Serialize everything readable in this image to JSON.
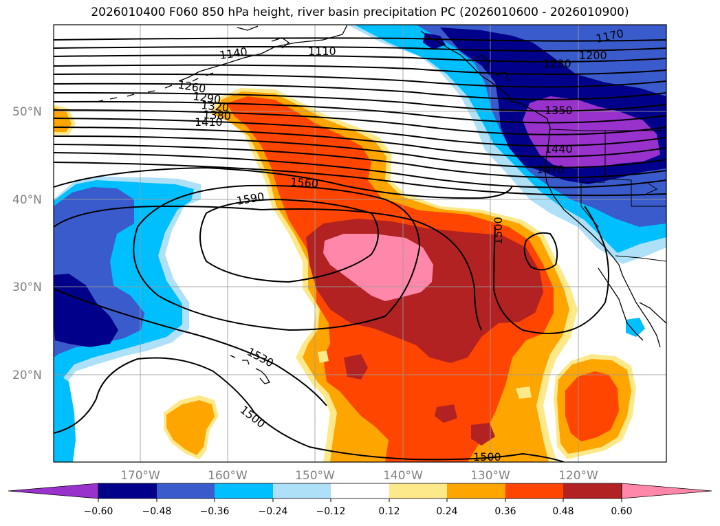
{
  "title": "2026010400 F060 850 hPa height, river basin precipitation PC (2026010600 - 2026010900)",
  "colors": {
    "neg_060": "#9932cc",
    "neg_048": "#00008b",
    "neg_036": "#3a5bcc",
    "neg_024": "#00bfff",
    "neg_012": "#aee0f8",
    "zero": "#ffffff",
    "pos_012": "#fde98a",
    "pos_024": "#ffa500",
    "pos_036": "#ff4500",
    "pos_048": "#b22222",
    "pos_060": "#ff88aa"
  },
  "lat_labels": [
    "50°N",
    "40°N",
    "30°N",
    "20°N"
  ],
  "lon_labels": [
    "170°W",
    "160°W",
    "150°W",
    "140°W",
    "130°W",
    "120°W"
  ],
  "contour_labels": [
    "1110",
    "1140",
    "1170",
    "1200",
    "1230",
    "1260",
    "1290",
    "1320",
    "1350",
    "1380",
    "1410",
    "1440",
    "1470",
    "1560",
    "1590",
    "1500",
    "1530",
    "1500",
    "1500"
  ],
  "colorbar": {
    "ticks": [
      "−0.60",
      "−0.48",
      "−0.36",
      "−0.24",
      "−0.12",
      "0.12",
      "0.24",
      "0.36",
      "0.48",
      "0.60"
    ]
  },
  "chart_data": {
    "type": "heatmap",
    "title": "2026010400 F060 850 hPa height, river basin precipitation PC (2026010600 - 2026010900)",
    "lon_range": [
      -180,
      -110
    ],
    "lat_range": [
      10,
      60
    ],
    "shading_levels": [
      -0.6,
      -0.48,
      -0.36,
      -0.24,
      -0.12,
      0.12,
      0.24,
      0.36,
      0.48,
      0.6
    ],
    "contour_levels": [
      1110,
      1140,
      1170,
      1200,
      1230,
      1260,
      1290,
      1320,
      1350,
      1380,
      1410,
      1440,
      1470,
      1500,
      1530,
      1560,
      1590
    ]
  }
}
